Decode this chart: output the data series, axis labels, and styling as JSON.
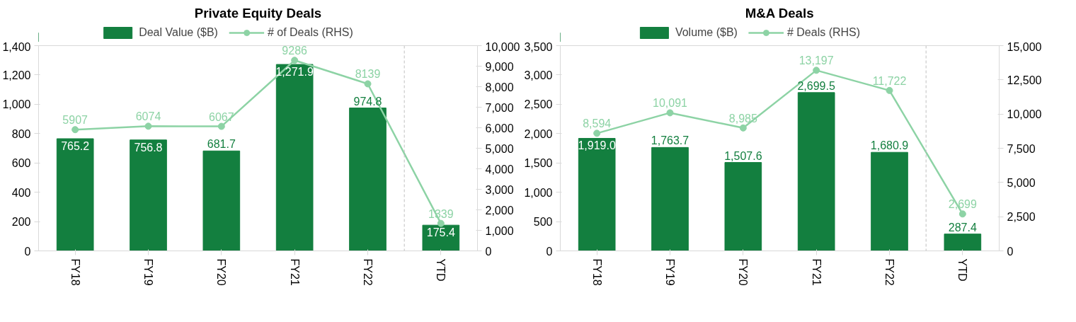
{
  "chart_data": [
    {
      "type": "bar",
      "title": "Private Equity Deals",
      "categories": [
        "FY18",
        "FY19",
        "FY20",
        "FY21",
        "FY22",
        "YTD"
      ],
      "series": [
        {
          "name": "Deal Value ($B)",
          "color": "#137f3f",
          "values": [
            765.2,
            756.8,
            681.7,
            1271.9,
            974.8,
            175.4
          ],
          "value_labels": [
            "765.2",
            "756.8",
            "681.7",
            "1,271.9",
            "974.8",
            "175.4"
          ]
        },
        {
          "name": "# of Deals (RHS)",
          "type": "line",
          "axis": "y2",
          "color": "#8dd3a5",
          "values": [
            5907,
            6074,
            6067,
            9286,
            8139,
            1339
          ],
          "value_labels": [
            "5907",
            "6074",
            "6067",
            "9286",
            "8139",
            "1339"
          ]
        }
      ],
      "ylim": [
        0,
        1400
      ],
      "yticks": [
        0,
        200,
        400,
        600,
        800,
        {
          "value": 1000,
          "label": "1,000"
        },
        {
          "value": 1200,
          "label": "1,200"
        },
        {
          "value": 1400,
          "label": "1,400"
        }
      ],
      "y2lim": [
        0,
        10000
      ],
      "y2ticks": [
        0,
        {
          "value": 1000,
          "label": "1,000"
        },
        {
          "value": 2000,
          "label": "2,000"
        },
        {
          "value": 3000,
          "label": "3,000"
        },
        {
          "value": 4000,
          "label": "4,000"
        },
        {
          "value": 5000,
          "label": "5,000"
        },
        {
          "value": 6000,
          "label": "6,000"
        },
        {
          "value": 7000,
          "label": "7,000"
        },
        {
          "value": 8000,
          "label": "8,000"
        },
        {
          "value": 9000,
          "label": "9,000"
        },
        {
          "value": 10000,
          "label": "10,000"
        }
      ],
      "legend": "top",
      "grid": false,
      "marker": "circle"
    },
    {
      "type": "bar",
      "title": "M&A Deals",
      "categories": [
        "FY18",
        "FY19",
        "FY20",
        "FY21",
        "FY22",
        "YTD"
      ],
      "series": [
        {
          "name": "Volume ($B)",
          "color": "#137f3f",
          "values": [
            1919.0,
            1763.7,
            1507.6,
            2699.5,
            1680.9,
            287.4
          ],
          "value_labels": [
            "1,919.0",
            "1,763.7",
            "1,507.6",
            "2,699.5",
            "1,680.9",
            "287.4"
          ]
        },
        {
          "name": "# Deals (RHS)",
          "type": "line",
          "axis": "y2",
          "color": "#8dd3a5",
          "values": [
            8594,
            10091,
            8985,
            13197,
            11722,
            2699
          ],
          "value_labels": [
            "8,594",
            "10,091",
            "8,985",
            "13,197",
            "11,722",
            "2,699"
          ]
        }
      ],
      "ylim": [
        0,
        3500
      ],
      "yticks": [
        0,
        500,
        {
          "value": 1000,
          "label": "1,000"
        },
        {
          "value": 1500,
          "label": "1,500"
        },
        {
          "value": 2000,
          "label": "2,000"
        },
        {
          "value": 2500,
          "label": "2,500"
        },
        {
          "value": 3000,
          "label": "3,000"
        },
        {
          "value": 3500,
          "label": "3,500"
        }
      ],
      "y2lim": [
        0,
        15000
      ],
      "y2ticks": [
        0,
        {
          "value": 2500,
          "label": "2,500"
        },
        {
          "value": 5000,
          "label": "5,000"
        },
        {
          "value": 7500,
          "label": "7,500"
        },
        {
          "value": 10000,
          "label": "10,000"
        },
        {
          "value": 12500,
          "label": "12,500"
        },
        {
          "value": 15000,
          "label": "15,000"
        }
      ],
      "legend": "top",
      "grid": false,
      "marker": "circle"
    }
  ]
}
